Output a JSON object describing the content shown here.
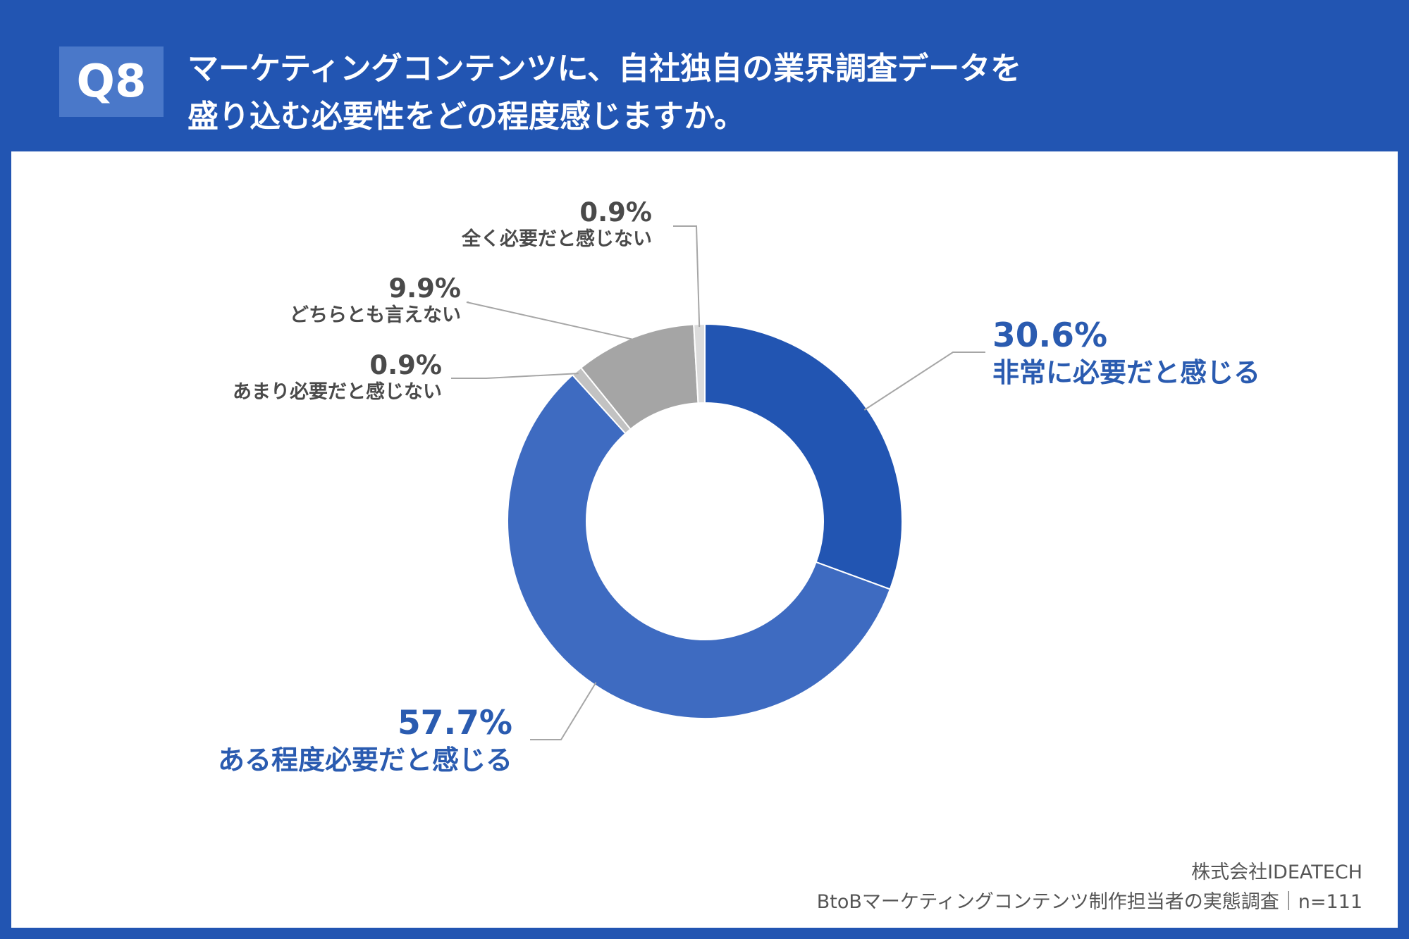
{
  "header": {
    "badge": "Q8",
    "title_line1": "マーケティングコンテンツに、自社独自の業界調査データを",
    "title_line2": "盛り込む必要性をどの程度感じますか。"
  },
  "colors": {
    "background": "#2255b2",
    "panel": "#ffffff",
    "leader": "#a6a6a6"
  },
  "chart_data": {
    "type": "pie",
    "donut": true,
    "series": [
      {
        "name": "非常に必要だと感じる",
        "value": 30.6,
        "label": "30.6%",
        "color": "#2255b2"
      },
      {
        "name": "ある程度必要だと感じる",
        "value": 57.7,
        "label": "57.7%",
        "color": "#3e6bc1"
      },
      {
        "name": "あまり必要だと感じない",
        "value": 0.9,
        "label": "0.9%",
        "color": "#c2c2c2"
      },
      {
        "name": "どちらとも言えない",
        "value": 9.9,
        "label": "9.9%",
        "color": "#a5a5a5"
      },
      {
        "name": "全く必要だと感じない",
        "value": 0.9,
        "label": "0.9%",
        "color": "#dcdcdc"
      }
    ]
  },
  "footer": {
    "company": "株式会社IDEATECH",
    "survey": "BtoBマーケティングコンテンツ制作担当者の実態調査｜n=111"
  }
}
